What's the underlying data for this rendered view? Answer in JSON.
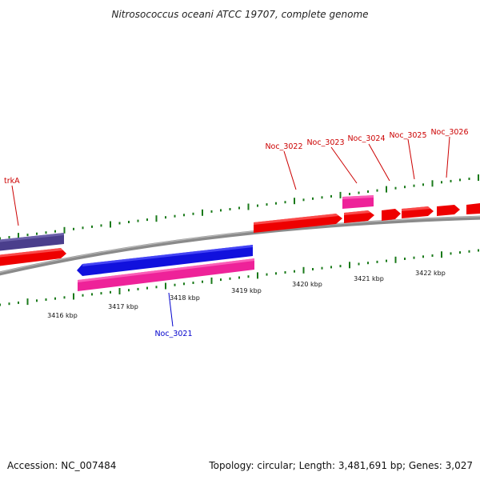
{
  "title": "Nitrosococcus oceani ATCC 19707, complete genome",
  "footer": {
    "accession": "Accession: NC_007484",
    "summary": "Topology: circular; Length: 3,481,691 bp; Genes: 3,027"
  },
  "axis": {
    "labels": [
      "3416 kbp",
      "3417 kbp",
      "3418 kbp",
      "3419 kbp",
      "3420 kbp",
      "3421 kbp",
      "3422 kbp"
    ]
  },
  "colors": {
    "red": "#ee0000",
    "blue": "#1111dd",
    "pink": "#ee2299",
    "purple": "#4a3e8c",
    "tick": "#1a7a1a",
    "backbone": "#888888",
    "label_red": "#cc0000",
    "label_blue": "#0000cc"
  },
  "genes": [
    {
      "name": "trkA",
      "color": "label_red"
    },
    {
      "name": "Noc_3021",
      "color": "label_blue"
    },
    {
      "name": "Noc_3022",
      "color": "label_red"
    },
    {
      "name": "Noc_3023",
      "color": "label_red"
    },
    {
      "name": "Noc_3024",
      "color": "label_red"
    },
    {
      "name": "Noc_3025",
      "color": "label_red"
    },
    {
      "name": "Noc_3026",
      "color": "label_red"
    }
  ]
}
